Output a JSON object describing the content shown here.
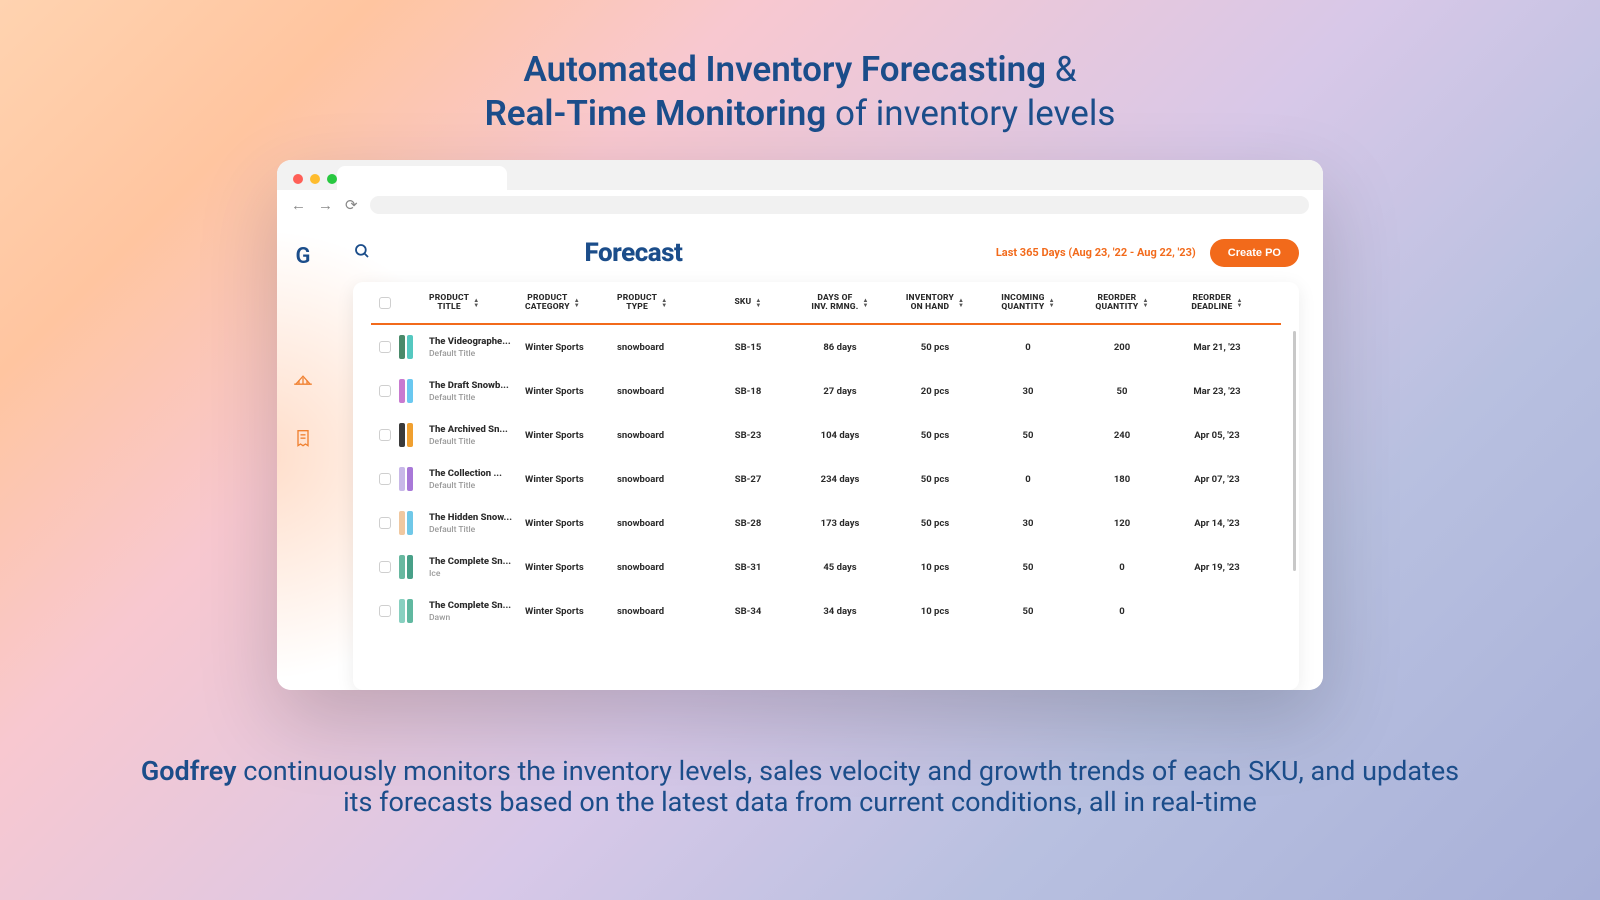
{
  "hero": {
    "line1_bold": "Automated Inventory Forecasting",
    "line1_rest": " & ",
    "line2_bold": "Real-Time Monitoring",
    "line2_rest": " of inventory levels"
  },
  "footer": {
    "brand": "Godfrey",
    "rest": " continuously monitors the inventory levels, sales velocity and growth trends of each SKU, and updates its forecasts based on the latest data from current conditions, all in real-time"
  },
  "browser": {
    "traffic_colors": {
      "red": "#ff5f57",
      "yellow": "#febc2e",
      "green": "#28c840"
    }
  },
  "sidebar": {
    "logo": "G"
  },
  "header": {
    "title": "Forecast",
    "date_range": "Last 365 Days (Aug 23, '22 - Aug 22, '23)",
    "create_po_label": "Create PO"
  },
  "accent_color": "#f26a1b",
  "columns": {
    "title": "PRODUCT\nTITLE",
    "category": "PRODUCT\nCATEGORY",
    "type": "PRODUCT\nTYPE",
    "sku": "SKU",
    "days": "DAYS OF\nINV. RMNG.",
    "onhand": "INVENTORY\nON HAND",
    "incoming": "INCOMING\nQUANTITY",
    "reqty": "REORDER\nQUANTITY",
    "deadline": "REORDER\nDEADLINE"
  },
  "rows": [
    {
      "title": "The Videographe...",
      "sub": "Default Title",
      "cat": "Winter Sports",
      "type": "snowboard",
      "sku": "SB-15",
      "days": "86 days",
      "onhand": "50 pcs",
      "incoming": "0",
      "reqty": "200",
      "deadline": "Mar 21, '23",
      "thumb": [
        "#4a8a6a",
        "#55c8c0"
      ]
    },
    {
      "title": "The Draft Snowb...",
      "sub": "Default Title",
      "cat": "Winter Sports",
      "type": "snowboard",
      "sku": "SB-18",
      "days": "27 days",
      "onhand": "20 pcs",
      "incoming": "30",
      "reqty": "50",
      "deadline": "Mar 23, '23",
      "thumb": [
        "#c87ad0",
        "#6ac8f0"
      ]
    },
    {
      "title": "The Archived Sn...",
      "sub": "Default Title",
      "cat": "Winter Sports",
      "type": "snowboard",
      "sku": "SB-23",
      "days": "104 days",
      "onhand": "50 pcs",
      "incoming": "50",
      "reqty": "240",
      "deadline": "Apr 05, '23",
      "thumb": [
        "#3a3a3a",
        "#f0a030"
      ]
    },
    {
      "title": "The Collection ...",
      "sub": "Default Title",
      "cat": "Winter Sports",
      "type": "snowboard",
      "sku": "SB-27",
      "days": "234 days",
      "onhand": "50 pcs",
      "incoming": "0",
      "reqty": "180",
      "deadline": "Apr 07, '23",
      "thumb": [
        "#c8b8e8",
        "#a878d8"
      ]
    },
    {
      "title": "The Hidden Snow...",
      "sub": "Default Title",
      "cat": "Winter Sports",
      "type": "snowboard",
      "sku": "SB-28",
      "days": "173 days",
      "onhand": "50 pcs",
      "incoming": "30",
      "reqty": "120",
      "deadline": "Apr 14, '23",
      "thumb": [
        "#f0c8a0",
        "#70c8e8"
      ]
    },
    {
      "title": "The Complete Sn...",
      "sub": "Ice",
      "cat": "Winter Sports",
      "type": "snowboard",
      "sku": "SB-31",
      "days": "45 days",
      "onhand": "10 pcs",
      "incoming": "50",
      "reqty": "0",
      "deadline": "Apr 19, '23",
      "thumb": [
        "#68b8a0",
        "#48a088"
      ]
    },
    {
      "title": "The Complete Sn...",
      "sub": "Dawn",
      "cat": "Winter Sports",
      "type": "snowboard",
      "sku": "SB-34",
      "days": "34 days",
      "onhand": "10 pcs",
      "incoming": "50",
      "reqty": "0",
      "deadline": "",
      "thumb": [
        "#88d0c0",
        "#60b8a0"
      ]
    }
  ]
}
